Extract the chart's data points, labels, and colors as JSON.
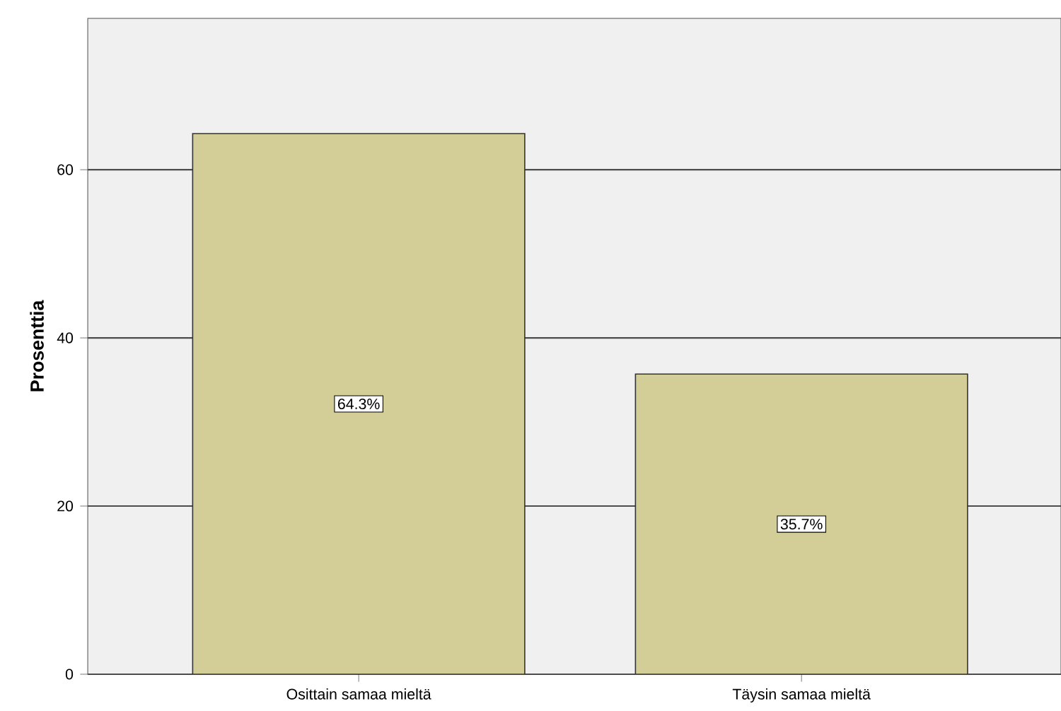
{
  "chart_data": {
    "type": "bar",
    "ylabel": "Prosenttia",
    "categories": [
      "Osittain samaa mieltä",
      "Täysin samaa mieltä"
    ],
    "values": [
      64.3,
      35.7
    ],
    "value_labels": [
      "64.3%",
      "35.7%"
    ],
    "color": "#d3ce97",
    "ylim": [
      0,
      78
    ],
    "yticks": [
      0,
      20,
      40,
      60
    ],
    "grid": "y"
  }
}
